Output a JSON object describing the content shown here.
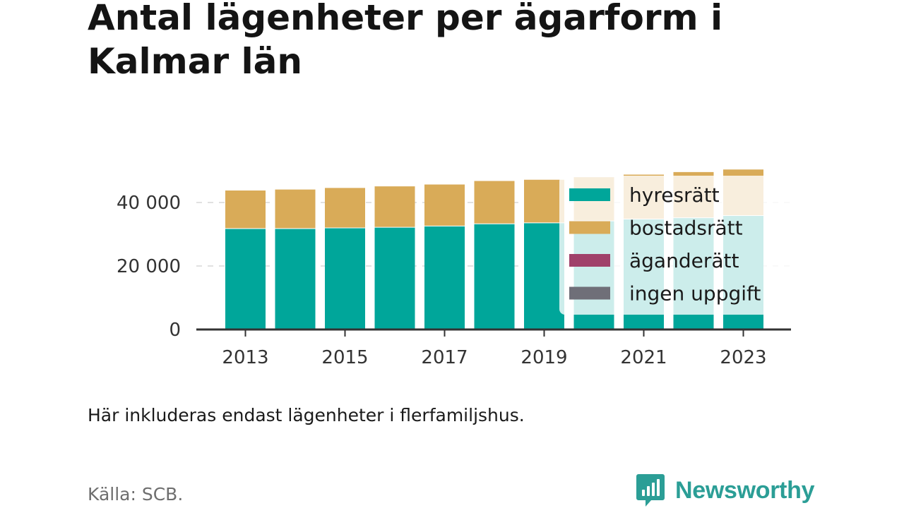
{
  "header": {
    "title": "Antal lägenheter per ägarform i Kalmar län"
  },
  "footer": {
    "note": "Här inkluderas endast lägenheter i flerfamiljshus.",
    "source": "Källa: SCB.",
    "brand": "Newsworthy"
  },
  "colors": {
    "hyresratt": "#00a69a",
    "bostadsratt": "#d9ab58",
    "aganderatt": "#a0416a",
    "ingen_uppgift": "#6f6f78",
    "brand": "#2b9e96"
  },
  "chart_data": {
    "type": "bar",
    "stacked": true,
    "categories": [
      "2013",
      "2014",
      "2015",
      "2016",
      "2017",
      "2018",
      "2019",
      "2020",
      "2021",
      "2022",
      "2023"
    ],
    "x_tick_labels": [
      "2013",
      "2015",
      "2017",
      "2019",
      "2021",
      "2023"
    ],
    "series": [
      {
        "name": "hyresrätt",
        "color": "#00a69a",
        "values": [
          31900,
          31900,
          32100,
          32300,
          32700,
          33400,
          33700,
          34300,
          34900,
          35300,
          36000
        ]
      },
      {
        "name": "bostadsrätt",
        "color": "#d9ab58",
        "values": [
          12100,
          12400,
          12700,
          13000,
          13200,
          13600,
          13700,
          13900,
          14100,
          14500,
          14600
        ]
      },
      {
        "name": "äganderätt",
        "color": "#a0416a",
        "values": [
          0,
          0,
          0,
          0,
          0,
          0,
          0,
          0,
          0,
          0,
          0
        ]
      },
      {
        "name": "ingen uppgift",
        "color": "#6f6f78",
        "values": [
          0,
          0,
          0,
          0,
          0,
          0,
          0,
          0,
          0,
          0,
          0
        ]
      }
    ],
    "y_ticks": [
      0,
      20000,
      40000
    ],
    "y_tick_labels": [
      "0",
      "20 000",
      "40 000"
    ],
    "ylim": [
      0,
      52000
    ],
    "grid": true,
    "legend_position": "right, overlapping the last bars"
  }
}
